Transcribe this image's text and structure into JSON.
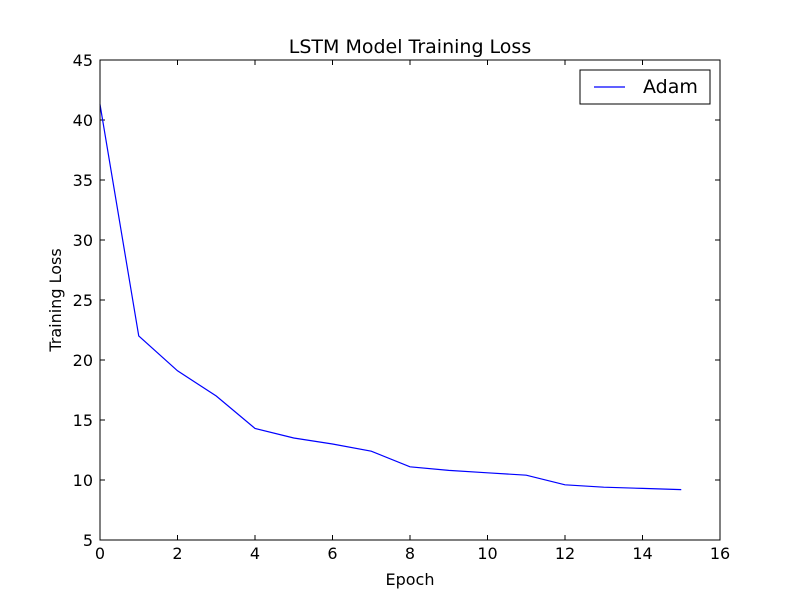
{
  "chart_data": {
    "type": "line",
    "title": "LSTM Model Training Loss",
    "xlabel": "Epoch",
    "ylabel": "Training Loss",
    "xlim": [
      0,
      16
    ],
    "ylim": [
      5,
      45
    ],
    "xticks": [
      0,
      2,
      4,
      6,
      8,
      10,
      12,
      14,
      16
    ],
    "yticks": [
      5,
      10,
      15,
      20,
      25,
      30,
      35,
      40,
      45
    ],
    "grid": false,
    "legend_position": "top-right",
    "series": [
      {
        "name": "Adam",
        "color": "#0000ff",
        "x": [
          0,
          1,
          2,
          3,
          4,
          5,
          6,
          7,
          8,
          9,
          10,
          11,
          12,
          13,
          14,
          15
        ],
        "y": [
          41.3,
          22.0,
          19.1,
          17.0,
          14.3,
          13.5,
          13.0,
          12.4,
          11.1,
          10.8,
          10.6,
          10.4,
          9.6,
          9.4,
          9.3,
          9.2
        ]
      }
    ]
  }
}
